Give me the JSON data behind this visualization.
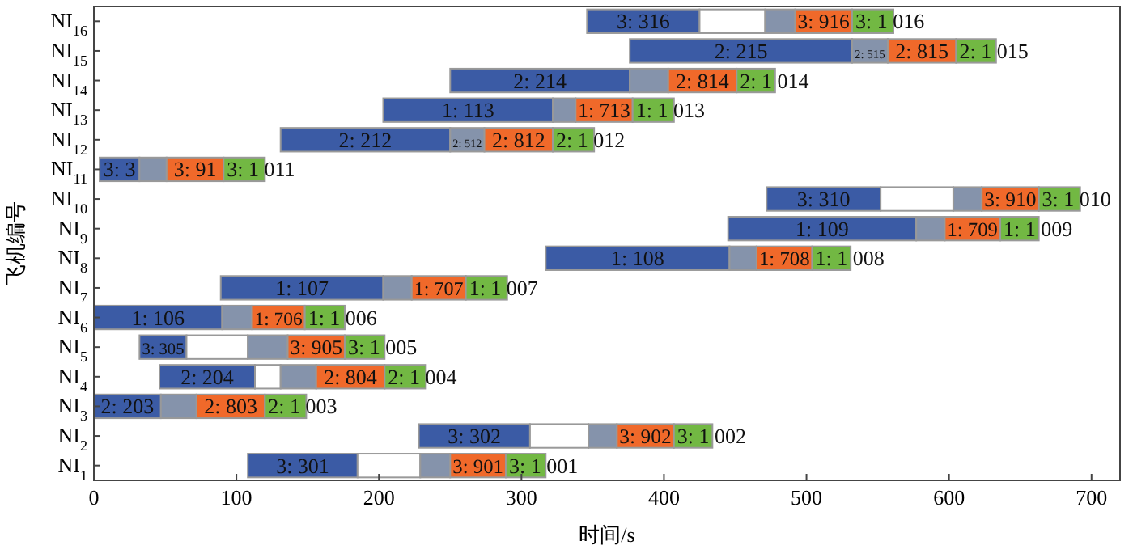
{
  "chart_data": {
    "type": "bar",
    "orientation": "horizontal",
    "xlabel": "时间/s",
    "ylabel": "飞机编号",
    "categories": [
      "NI$_{16}$",
      "NI$_{15}$",
      "NI$_{14}$",
      "NI$_{13}$",
      "NI$_{12}$",
      "NI$_{11}$",
      "NI$_{10}$",
      "NI$_{9}$",
      "NI$_{8}$",
      "NI$_{7}$",
      "NI$_{6}$",
      "NI$_{5}$",
      "NI$_{4}$",
      "NI$_{3}$",
      "NI$_{2}$",
      "NI$_{1}$"
    ],
    "xlim": [
      0,
      720
    ],
    "xticks": [
      0,
      100,
      200,
      300,
      400,
      500,
      600,
      700
    ],
    "grid": false,
    "series": [
      {
        "color": "#3b5ba5",
        "base": [
          346,
          376,
          250,
          203,
          131,
          4,
          472,
          445,
          317,
          89,
          0,
          32,
          46,
          0,
          228,
          108
        ],
        "values": [
          79,
          156,
          126,
          119,
          119,
          28,
          80,
          132,
          129,
          114,
          90,
          33,
          67,
          47,
          78,
          77
        ],
        "value_labels": [
          "3: 316",
          "2: 215",
          "2: 214",
          "1: 113",
          "2: 212",
          "3: 3",
          "3: 310",
          "1: 109",
          "1: 108",
          "1: 107",
          "1: 106",
          "3: 305",
          "2: 204",
          "2: 203",
          "3: 302",
          "3: 301"
        ]
      },
      {
        "color": "#ffffff",
        "base": [
          425,
          null,
          null,
          null,
          null,
          null,
          552,
          null,
          null,
          null,
          null,
          65,
          113,
          null,
          306,
          185
        ],
        "values": [
          46,
          null,
          null,
          null,
          null,
          null,
          51,
          null,
          null,
          null,
          null,
          43,
          18,
          null,
          41,
          44
        ]
      },
      {
        "color": "#8593ab",
        "base": [
          471,
          532,
          376,
          322,
          250,
          32,
          603,
          577,
          446,
          203,
          90,
          108,
          131,
          47,
          347,
          229
        ],
        "values": [
          21,
          25,
          27,
          16,
          24,
          19,
          20,
          20,
          19,
          20,
          21,
          28,
          25,
          25,
          20,
          21
        ],
        "value_labels": [
          null,
          "2: 515",
          null,
          null,
          "2: 512",
          null,
          null,
          null,
          null,
          null,
          null,
          null,
          null,
          null,
          null,
          null
        ]
      },
      {
        "color": "#f0692a",
        "base": [
          492,
          557,
          403,
          338,
          274,
          51,
          623,
          597,
          465,
          223,
          111,
          136,
          156,
          72,
          367,
          250
        ],
        "values": [
          40,
          48,
          48,
          40,
          48,
          40,
          40,
          39,
          39,
          38,
          37,
          40,
          48,
          48,
          40,
          39
        ],
        "value_labels": [
          "3: 916",
          "2: 815",
          "2: 814",
          "1: 713",
          "2: 812",
          "3: 91",
          "3: 910",
          "1: 709",
          "1: 708",
          "1: 707",
          "1: 706",
          "3: 905",
          "2: 804",
          "2: 803",
          "3: 902",
          "3: 901"
        ]
      },
      {
        "color": "#72b843",
        "base": [
          532,
          605,
          451,
          378,
          322,
          91,
          663,
          636,
          504,
          261,
          148,
          176,
          204,
          120,
          407,
          289
        ],
        "values": [
          29,
          28,
          27,
          29,
          29,
          29,
          29,
          27,
          27,
          29,
          28,
          28,
          29,
          29,
          27,
          28
        ],
        "value_labels": [
          "3: 1 016",
          "2: 1 015",
          "2: 1 014",
          "1: 1 013",
          "2: 1 012",
          "3: 1 011",
          "3: 1 010",
          "1: 1 009",
          "1: 1 008",
          "1: 1 007",
          "1: 1 006",
          "3: 1 005",
          "2: 1 004",
          "2: 1 003",
          "3: 1 002",
          "3: 1 001"
        ]
      }
    ]
  }
}
